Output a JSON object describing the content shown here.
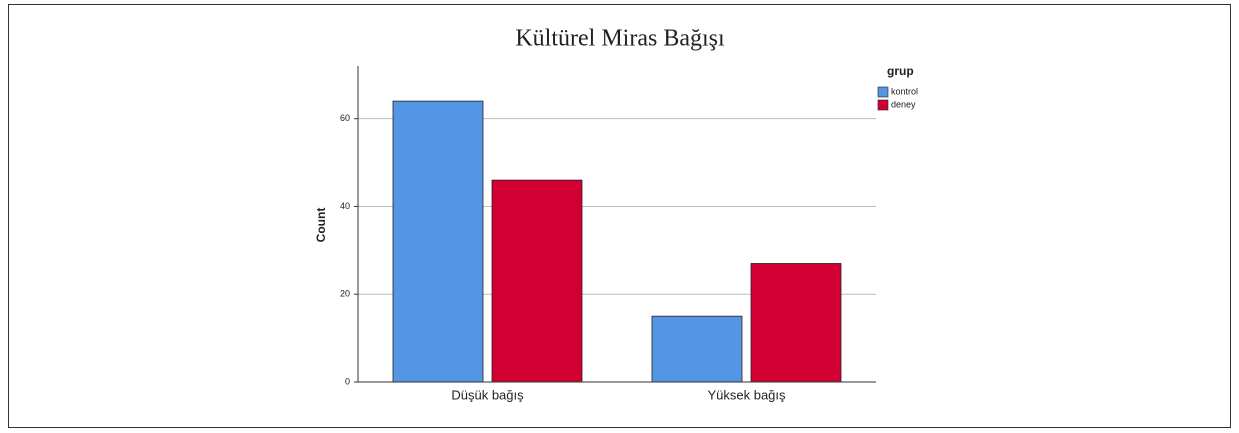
{
  "chart_data": {
    "type": "bar",
    "title": "Kültürel Miras Bağışı",
    "ylabel": "Count",
    "categories": [
      "Düşük bağış",
      "Yüksek bağış"
    ],
    "legend_title": "grup",
    "series": [
      {
        "name": "kontrol",
        "color": "#5495e5",
        "values": [
          64,
          15
        ]
      },
      {
        "name": "deney",
        "color": "#d20032",
        "values": [
          46,
          27
        ]
      }
    ],
    "ylim": [
      0,
      72
    ],
    "yticks": [
      0,
      20,
      40,
      60
    ],
    "grid": true,
    "legend": "upper right"
  }
}
